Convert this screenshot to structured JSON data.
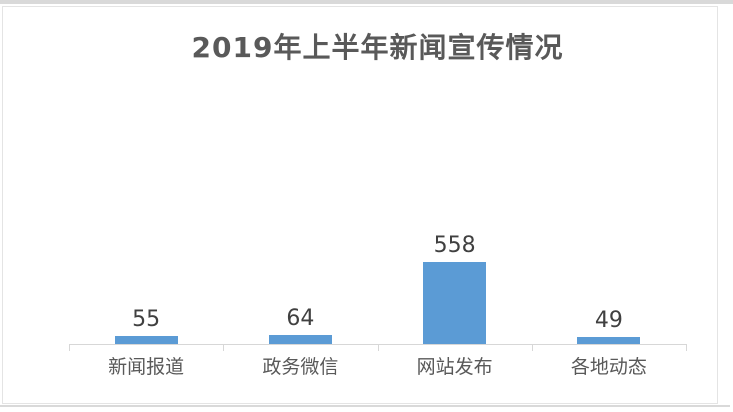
{
  "chart_data": {
    "type": "bar",
    "title": "2019年上半年新闻宣传情况",
    "categories": [
      "新闻报道",
      "政务微信",
      "网站发布",
      "各地动态"
    ],
    "values": [
      55,
      64,
      558,
      49
    ],
    "xlabel": "",
    "ylabel": "",
    "ylim": [
      0,
      600
    ],
    "grid": false,
    "legend": false,
    "data_labels_shown": true,
    "colors": {
      "bar": "#5B9BD5",
      "title_text": "#595959",
      "value_label_text": "#404040",
      "category_label_text": "#595959",
      "axis_line": "#d7d7d7",
      "frame_border": "#e4e4e4",
      "edge_strip": "#d9d9d9",
      "background": "#ffffff"
    }
  }
}
